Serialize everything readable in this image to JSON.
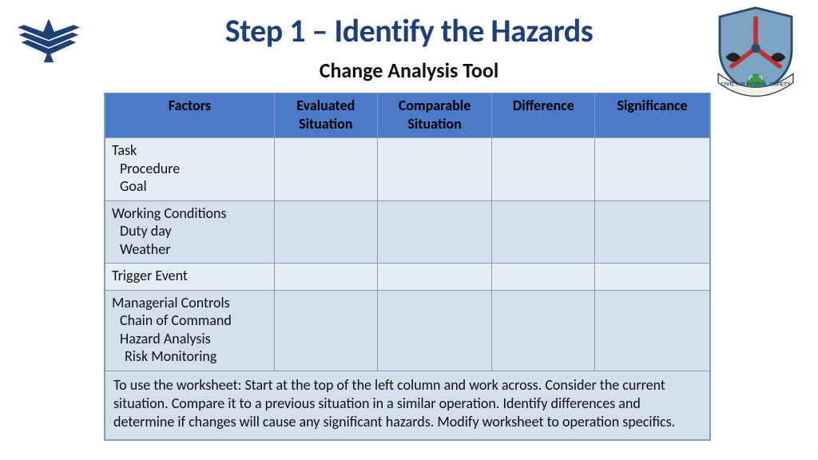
{
  "title": {
    "text": "Step 1 – Identify the Hazards",
    "color": "#1f3f7a",
    "fontsize": 40
  },
  "subtitle": {
    "text": "Change Analysis Tool",
    "color": "#111111",
    "fontsize": 26
  },
  "table": {
    "header_bg": "#4a7ac8",
    "row_light_bg": "#e4ecf4",
    "row_dark_bg": "#d4dfec",
    "border_color": "#8a9cb0",
    "columns": [
      "Factors",
      "Evaluated Situation",
      "Comparable Situation",
      "Difference",
      "Significance"
    ],
    "rows": [
      {
        "shade": "light",
        "factor_main": "Task",
        "factor_subs": [
          "Procedure",
          "Goal"
        ],
        "cells": [
          "",
          "",
          "",
          ""
        ]
      },
      {
        "shade": "dark",
        "factor_main": "Working Conditions",
        "factor_subs": [
          "Duty day",
          "Weather"
        ],
        "cells": [
          "",
          "",
          "",
          ""
        ]
      },
      {
        "shade": "light",
        "factor_main": "Trigger Event",
        "factor_subs": [],
        "cells": [
          "",
          "",
          "",
          ""
        ]
      },
      {
        "shade": "dark",
        "factor_main": "Managerial Controls",
        "factor_subs": [
          "Chain of Command",
          "Hazard Analysis"
        ],
        "factor_subs2": [
          "Risk Monitoring"
        ],
        "cells": [
          "",
          "",
          "",
          ""
        ]
      }
    ],
    "footer": "To use the worksheet: Start at the  top of the left column  and work across. Consider the current situation. Compare it to a previous situation in a similar operation.  Identify differences and determine if changes will cause any significant hazards. Modify worksheet to operation specifics."
  },
  "logos": {
    "left_color": "#1f3f7a",
    "right_shield_fill": "#7ba3c2",
    "right_shield_border": "#2e4a6b",
    "right_prop_color": "#c23030",
    "right_banner_bg": "#f4f0e6",
    "right_banner_text": "CIVIL AIR PATROL SAFETY"
  }
}
